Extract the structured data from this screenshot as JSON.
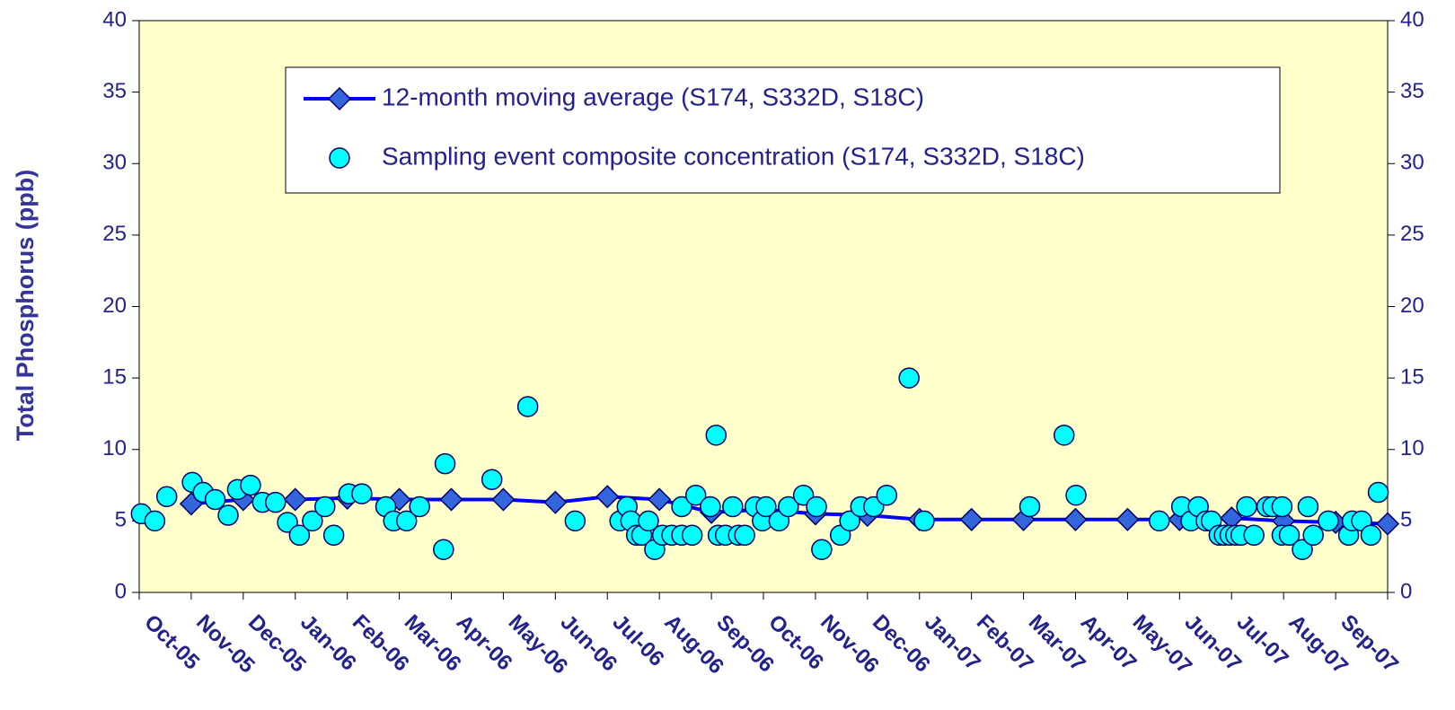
{
  "chart_data": {
    "type": "scatter",
    "y_label": "Total Phosphorus (ppb)",
    "categories": [
      "Oct-05",
      "Nov-05",
      "Dec-05",
      "Jan-06",
      "Feb-06",
      "Mar-06",
      "Apr-06",
      "May-06",
      "Jun-06",
      "Jul-06",
      "Aug-06",
      "Sep-06",
      "Oct-06",
      "Nov-06",
      "Dec-06",
      "Jan-07",
      "Feb-07",
      "Mar-07",
      "Apr-07",
      "May-07",
      "Jun-07",
      "Jul-07",
      "Aug-07",
      "Sep-07"
    ],
    "xlim": [
      0,
      24
    ],
    "ylim": [
      0,
      40
    ],
    "yticks": [
      0,
      5,
      10,
      15,
      20,
      25,
      30,
      35,
      40
    ],
    "y2lim": [
      0,
      40
    ],
    "y2ticks": [
      0,
      5,
      10,
      15,
      20,
      25,
      30,
      35,
      40
    ],
    "background": "#ffffcc",
    "series": [
      {
        "name": "12-month moving average (S174, S332D, S18C)",
        "type": "line",
        "color": "#0000ff",
        "marker_color": "#3366dd",
        "x": [
          1,
          2,
          3,
          4,
          5,
          6,
          7,
          8,
          9,
          10,
          11,
          12,
          13,
          14,
          15,
          16,
          17,
          18,
          19,
          20,
          21,
          22,
          23,
          24
        ],
        "values": [
          6.2,
          6.5,
          6.5,
          6.6,
          6.5,
          6.5,
          6.5,
          6.3,
          6.7,
          6.5,
          5.6,
          5.8,
          5.5,
          5.4,
          5.1,
          5.1,
          5.1,
          5.1,
          5.1,
          5.1,
          5.2,
          5.0,
          4.9,
          4.8
        ]
      },
      {
        "name": "Sampling event composite concentration (S174, S332D, S18C)",
        "type": "scatter",
        "color": "#00ffff",
        "x": [
          0.04,
          0.3,
          0.53,
          1.02,
          1.23,
          1.46,
          1.71,
          1.89,
          2.14,
          2.37,
          2.62,
          2.85,
          3.08,
          3.33,
          3.57,
          3.74,
          4.03,
          4.28,
          4.74,
          4.89,
          5.14,
          5.39,
          5.85,
          5.88,
          6.78,
          7.47,
          8.38,
          9.24,
          9.38,
          9.45,
          9.56,
          9.66,
          9.79,
          9.91,
          10.06,
          10.24,
          10.43,
          10.43,
          10.63,
          10.7,
          10.98,
          11.09,
          11.13,
          11.27,
          11.41,
          11.52,
          11.64,
          11.84,
          11.98,
          12.05,
          12.3,
          12.48,
          12.77,
          13.02,
          13.12,
          13.48,
          13.66,
          13.87,
          14.12,
          14.37,
          14.8,
          15.09,
          17.12,
          17.78,
          18.01,
          19.61,
          20.04,
          20.22,
          20.36,
          20.51,
          20.61,
          20.76,
          20.86,
          20.97,
          21.08,
          21.18,
          21.29,
          21.43,
          21.68,
          21.79,
          21.97,
          21.97,
          22.11,
          22.36,
          22.47,
          22.57,
          22.86,
          23.25,
          23.32,
          23.5,
          23.68,
          23.82
        ],
        "values": [
          5.5,
          5,
          6.7,
          7.7,
          7,
          6.5,
          5.4,
          7.2,
          7.5,
          6.3,
          6.3,
          4.9,
          4,
          5,
          6,
          4,
          6.9,
          6.9,
          6,
          5,
          5,
          6,
          3,
          9,
          7.9,
          13,
          5,
          5,
          6,
          5,
          4,
          4,
          5,
          3,
          4,
          4,
          6,
          4,
          4,
          6.8,
          6,
          11,
          4,
          4,
          6,
          4,
          4,
          6,
          5,
          6,
          5,
          6,
          6.8,
          6,
          3,
          4,
          5,
          6,
          6,
          6.8,
          15,
          5,
          6,
          11,
          6.8,
          5,
          6,
          5,
          6,
          5,
          5,
          4,
          4,
          4,
          4,
          4,
          6,
          4,
          6,
          6,
          6,
          4,
          4,
          3,
          6,
          4,
          5,
          4,
          5,
          5,
          4,
          7
        ]
      }
    ]
  }
}
